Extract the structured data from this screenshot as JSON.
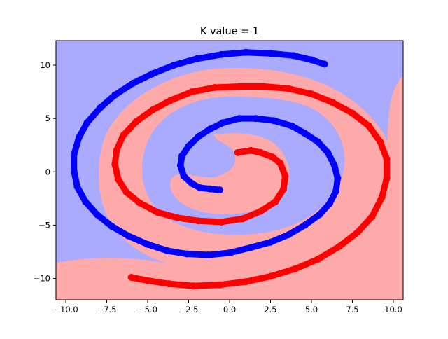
{
  "chart_data": {
    "type": "scatter",
    "title": "K value = 1",
    "xlabel": "",
    "ylabel": "",
    "xlim": [
      -10.6,
      10.6
    ],
    "ylim": [
      -12.0,
      12.3
    ],
    "xticks": [
      -10.0,
      -7.5,
      -5.0,
      -2.5,
      0.0,
      2.5,
      5.0,
      7.5,
      10.0
    ],
    "xtick_labels": [
      "−10.0",
      "−7.5",
      "−5.0",
      "−2.5",
      "0.0",
      "2.5",
      "5.0",
      "7.5",
      "10.0"
    ],
    "yticks": [
      -10,
      -5,
      0,
      5,
      10
    ],
    "ytick_labels": [
      "−10",
      "−5",
      "0",
      "5",
      "10"
    ],
    "grid": false,
    "decision_regions": [
      {
        "class": "blue",
        "color": "#aaaaff"
      },
      {
        "class": "red",
        "color": "#ffaaaa"
      }
    ],
    "series": [
      {
        "color": "#0000ff",
        "points": [
          [
            -0.6,
            -1.7
          ],
          [
            -1.2,
            -1.6
          ],
          [
            -1.8,
            -1.5
          ],
          [
            -2.3,
            -1.1
          ],
          [
            -2.8,
            -0.4
          ],
          [
            -3.0,
            0.6
          ],
          [
            -2.9,
            1.5
          ],
          [
            -2.5,
            2.4
          ],
          [
            -1.9,
            3.3
          ],
          [
            -1.2,
            4.0
          ],
          [
            -0.4,
            4.6
          ],
          [
            0.6,
            5.0
          ],
          [
            1.6,
            5.0
          ],
          [
            2.7,
            4.8
          ],
          [
            3.8,
            4.3
          ],
          [
            4.6,
            3.6
          ],
          [
            5.4,
            2.8
          ],
          [
            6.0,
            1.8
          ],
          [
            6.4,
            0.6
          ],
          [
            6.6,
            -0.6
          ],
          [
            6.5,
            -1.8
          ],
          [
            6.1,
            -3.0
          ],
          [
            5.5,
            -4.0
          ],
          [
            4.6,
            -5.0
          ],
          [
            3.6,
            -5.9
          ],
          [
            2.5,
            -6.6
          ],
          [
            1.3,
            -7.1
          ],
          [
            0.0,
            -7.6
          ],
          [
            -1.3,
            -7.8
          ],
          [
            -2.6,
            -7.7
          ],
          [
            -3.8,
            -7.4
          ],
          [
            -5.0,
            -6.8
          ],
          [
            -6.2,
            -6.0
          ],
          [
            -7.2,
            -5.1
          ],
          [
            -8.1,
            -4.0
          ],
          [
            -8.8,
            -2.8
          ],
          [
            -9.3,
            -1.4
          ],
          [
            -9.5,
            0.1
          ],
          [
            -9.5,
            1.6
          ],
          [
            -9.2,
            3.2
          ],
          [
            -8.7,
            4.6
          ],
          [
            -7.9,
            6.0
          ],
          [
            -7.0,
            7.2
          ],
          [
            -5.9,
            8.3
          ],
          [
            -4.7,
            9.2
          ],
          [
            -3.4,
            10.0
          ],
          [
            -2.0,
            10.6
          ],
          [
            -0.5,
            11.0
          ],
          [
            1.0,
            11.2
          ],
          [
            2.5,
            11.1
          ],
          [
            3.9,
            10.9
          ],
          [
            5.0,
            10.5
          ],
          [
            5.8,
            10.1
          ]
        ]
      },
      {
        "color": "#ff0000",
        "points": [
          [
            0.5,
            1.8
          ],
          [
            1.3,
            2.0
          ],
          [
            1.9,
            1.8
          ],
          [
            2.6,
            1.4
          ],
          [
            3.1,
            0.8
          ],
          [
            3.4,
            -0.4
          ],
          [
            3.3,
            -1.6
          ],
          [
            2.8,
            -2.8
          ],
          [
            1.9,
            -3.7
          ],
          [
            0.8,
            -4.4
          ],
          [
            -0.5,
            -4.7
          ],
          [
            -1.9,
            -4.6
          ],
          [
            -3.2,
            -4.3
          ],
          [
            -4.4,
            -3.8
          ],
          [
            -5.5,
            -2.9
          ],
          [
            -6.3,
            -1.9
          ],
          [
            -6.8,
            -0.7
          ],
          [
            -7.0,
            0.7
          ],
          [
            -6.9,
            2.0
          ],
          [
            -6.5,
            3.4
          ],
          [
            -5.7,
            4.7
          ],
          [
            -4.7,
            5.8
          ],
          [
            -3.6,
            6.7
          ],
          [
            -2.3,
            7.5
          ],
          [
            -0.9,
            7.9
          ],
          [
            0.6,
            8.0
          ],
          [
            2.1,
            8.0
          ],
          [
            3.6,
            7.8
          ],
          [
            5.0,
            7.3
          ],
          [
            6.3,
            6.5
          ],
          [
            7.5,
            5.5
          ],
          [
            8.5,
            4.3
          ],
          [
            9.2,
            2.8
          ],
          [
            9.6,
            1.2
          ],
          [
            9.6,
            -0.6
          ],
          [
            9.3,
            -2.4
          ],
          [
            8.7,
            -4.2
          ],
          [
            7.8,
            -5.7
          ],
          [
            6.7,
            -7.0
          ],
          [
            5.4,
            -8.2
          ],
          [
            4.0,
            -9.1
          ],
          [
            2.5,
            -9.8
          ],
          [
            1.0,
            -10.3
          ],
          [
            -0.6,
            -10.6
          ],
          [
            -2.2,
            -10.7
          ],
          [
            -3.7,
            -10.5
          ],
          [
            -5.0,
            -10.2
          ],
          [
            -6.0,
            -9.9
          ]
        ]
      }
    ]
  }
}
